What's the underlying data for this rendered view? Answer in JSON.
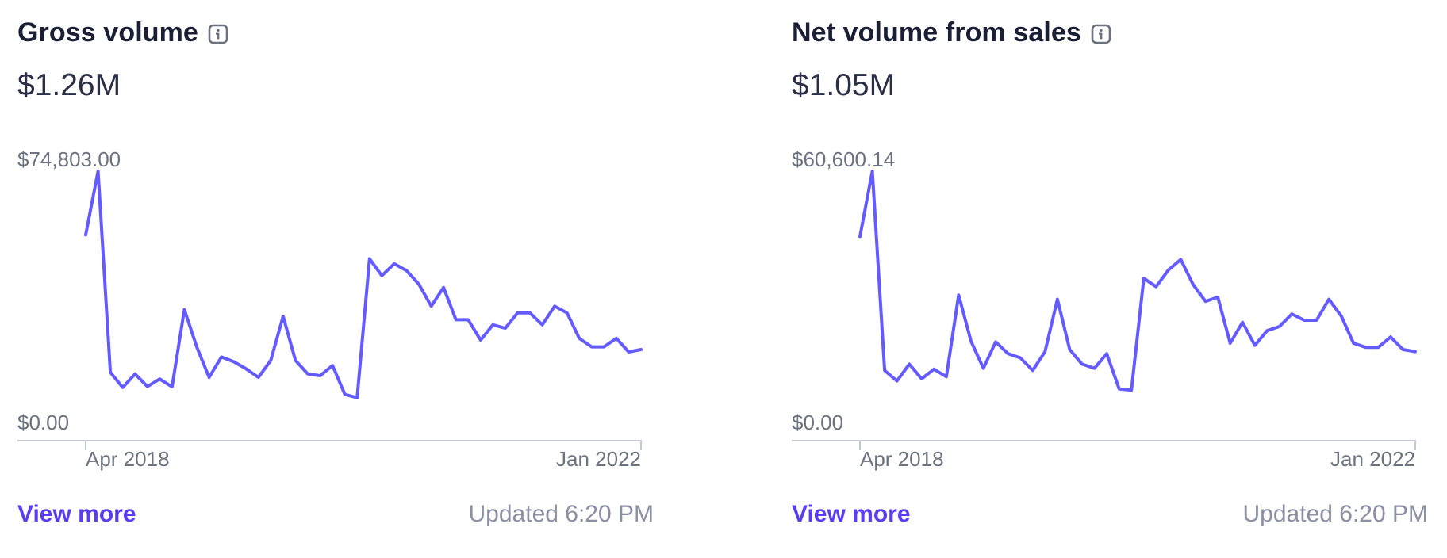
{
  "colors": {
    "line": "#635bff",
    "axis": "#c4c8d2",
    "link": "#5b3cf0",
    "muted": "#8a8fa3"
  },
  "cards": [
    {
      "title": "Gross volume",
      "info_icon": "info-icon",
      "value": "$1.26M",
      "view_more": "View more",
      "updated": "Updated 6:20 PM"
    },
    {
      "title": "Net volume from sales",
      "info_icon": "info-icon",
      "value": "$1.05M",
      "view_more": "View more",
      "updated": "Updated 6:20 PM"
    }
  ],
  "chart_data": [
    {
      "type": "line",
      "x_tick_labels": [
        "Apr 2018",
        "Jan 2022"
      ],
      "y_tick_labels": [
        "$74,803.00",
        "$0.00"
      ],
      "ylim": [
        0,
        74803
      ],
      "series": [
        {
          "values": [
            56000,
            74803,
            15500,
            11000,
            15000,
            11300,
            13500,
            11200,
            34000,
            23000,
            14000,
            20000,
            18600,
            16500,
            14000,
            19000,
            32000,
            19000,
            15000,
            14500,
            17500,
            9000,
            8000,
            49000,
            44000,
            47500,
            45500,
            41500,
            35000,
            40500,
            31000,
            31000,
            25000,
            29500,
            28500,
            33000,
            33000,
            29500,
            35000,
            33000,
            25500,
            23000,
            23000,
            25500,
            21500,
            22200
          ]
        }
      ]
    },
    {
      "type": "line",
      "x_tick_labels": [
        "Apr 2018",
        "Jan 2022"
      ],
      "y_tick_labels": [
        "$60,600.14",
        "$0.00"
      ],
      "ylim": [
        0,
        60600.14
      ],
      "series": [
        {
          "values": [
            45000,
            60600,
            13000,
            10500,
            14500,
            11000,
            13300,
            11500,
            31000,
            20000,
            13500,
            19800,
            17000,
            16000,
            13000,
            17500,
            30000,
            18000,
            14500,
            13500,
            17000,
            8600,
            8300,
            35000,
            33000,
            37000,
            39500,
            33500,
            29500,
            30500,
            19500,
            24500,
            19000,
            22500,
            23500,
            26500,
            25000,
            25000,
            30000,
            26000,
            19500,
            18500,
            18500,
            21000,
            18000,
            17500
          ]
        }
      ]
    }
  ]
}
